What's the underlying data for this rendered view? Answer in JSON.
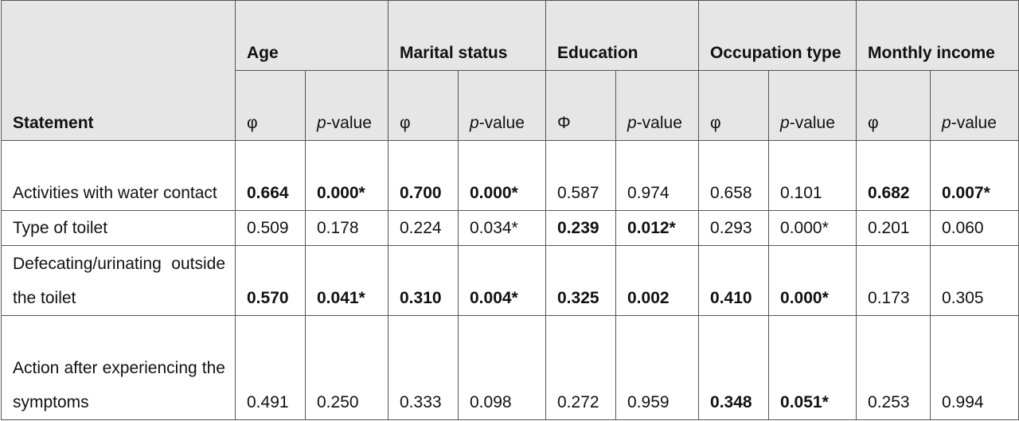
{
  "table": {
    "header": {
      "statement": "Statement",
      "groups": [
        {
          "name": "Age",
          "sub": [
            "φ",
            "p-value"
          ]
        },
        {
          "name": "Marital status",
          "sub": [
            "φ",
            "p-value"
          ]
        },
        {
          "name": "Education",
          "sub": [
            "Φ",
            "p-value"
          ]
        },
        {
          "name": "Occupation type",
          "sub": [
            "φ",
            "p-value"
          ]
        },
        {
          "name": "Monthly income",
          "sub": [
            "φ",
            "p-value"
          ]
        }
      ]
    },
    "rows": [
      {
        "statement": "Activities with water contact",
        "cells": [
          "0.664",
          "0.000*",
          "0.700",
          "0.000*",
          "0.587",
          "0.974",
          "0.658",
          "0.101",
          "0.682",
          "0.007*"
        ],
        "bold_groups": [
          true,
          true,
          false,
          false,
          true
        ]
      },
      {
        "statement": "Type of toilet",
        "cells": [
          "0.509",
          "0.178",
          "0.224",
          "0.034*",
          "0.239",
          "0.012*",
          "0.293",
          "0.000*",
          "0.201",
          "0.060"
        ],
        "bold_groups": [
          false,
          false,
          true,
          false,
          false
        ]
      },
      {
        "statement": "Defecating/urinating outside the toilet",
        "cells": [
          "0.570",
          "0.041*",
          "0.310",
          "0.004*",
          "0.325",
          "0.002",
          "0.410",
          "0.000*",
          "0.173",
          "0.305"
        ],
        "bold_groups": [
          true,
          true,
          true,
          true,
          false
        ]
      },
      {
        "statement": "Action after experiencing the symptoms",
        "cells": [
          "0.491",
          "0.250",
          "0.333",
          "0.098",
          "0.272",
          "0.959",
          "0.348",
          "0.051*",
          "0.253",
          "0.994"
        ],
        "bold_groups": [
          false,
          false,
          false,
          true,
          false
        ]
      }
    ]
  }
}
